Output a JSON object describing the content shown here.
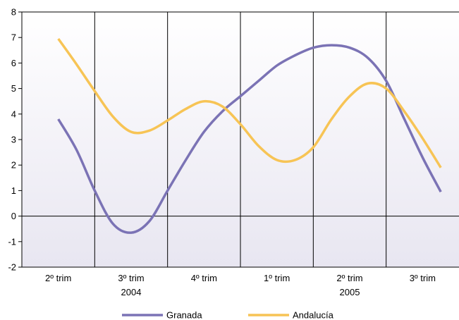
{
  "chart_data": {
    "type": "line",
    "categories": [
      "2º trim",
      "3º trim",
      "4º trim",
      "1º trim",
      "2º trim",
      "3º trim"
    ],
    "year_labels": [
      "2004",
      "2005"
    ],
    "ylim": [
      -2,
      8
    ],
    "yticks": [
      "-2",
      "-1",
      "0",
      "1",
      "2",
      "3",
      "4",
      "5",
      "6",
      "7",
      "8"
    ],
    "grid": "vertical lines between categories",
    "legend_position": "bottom",
    "series": [
      {
        "name": "Granada",
        "color": "#7b73b5",
        "points": [
          [
            0,
            3.8
          ],
          [
            0.25,
            2.6
          ],
          [
            0.5,
            1.0
          ],
          [
            0.75,
            -0.3
          ],
          [
            1.0,
            -0.65
          ],
          [
            1.25,
            -0.2
          ],
          [
            1.5,
            1.0
          ],
          [
            1.75,
            2.2
          ],
          [
            2.0,
            3.3
          ],
          [
            2.25,
            4.1
          ],
          [
            2.5,
            4.7
          ],
          [
            2.75,
            5.3
          ],
          [
            3.0,
            5.9
          ],
          [
            3.25,
            6.3
          ],
          [
            3.5,
            6.6
          ],
          [
            3.75,
            6.7
          ],
          [
            4.0,
            6.6
          ],
          [
            4.25,
            6.2
          ],
          [
            4.5,
            5.3
          ],
          [
            4.75,
            3.8
          ],
          [
            5.0,
            2.3
          ],
          [
            5.25,
            0.95
          ]
        ]
      },
      {
        "name": "Andalucía",
        "color": "#f7c455",
        "points": [
          [
            0,
            6.95
          ],
          [
            0.25,
            5.95
          ],
          [
            0.5,
            4.9
          ],
          [
            0.75,
            3.9
          ],
          [
            1.0,
            3.3
          ],
          [
            1.25,
            3.35
          ],
          [
            1.5,
            3.75
          ],
          [
            1.75,
            4.2
          ],
          [
            2.0,
            4.5
          ],
          [
            2.25,
            4.3
          ],
          [
            2.5,
            3.6
          ],
          [
            2.75,
            2.75
          ],
          [
            3.0,
            2.2
          ],
          [
            3.25,
            2.2
          ],
          [
            3.5,
            2.7
          ],
          [
            3.75,
            3.8
          ],
          [
            4.0,
            4.7
          ],
          [
            4.25,
            5.2
          ],
          [
            4.5,
            5.0
          ],
          [
            4.75,
            4.1
          ],
          [
            5.0,
            3.05
          ],
          [
            5.25,
            1.9
          ]
        ]
      }
    ]
  }
}
